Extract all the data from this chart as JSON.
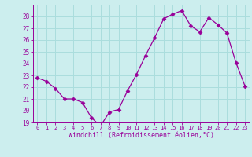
{
  "x": [
    0,
    1,
    2,
    3,
    4,
    5,
    6,
    7,
    8,
    9,
    10,
    11,
    12,
    13,
    14,
    15,
    16,
    17,
    18,
    19,
    20,
    21,
    22,
    23
  ],
  "y": [
    22.8,
    22.5,
    21.9,
    21.0,
    21.0,
    20.7,
    19.4,
    18.7,
    19.9,
    20.1,
    21.7,
    23.1,
    24.7,
    26.2,
    27.8,
    28.2,
    28.5,
    27.2,
    26.7,
    27.9,
    27.3,
    26.6,
    24.1,
    22.1
  ],
  "line_color": "#990099",
  "marker": "D",
  "marker_size": 2.5,
  "bg_color": "#cceeee",
  "grid_color": "#aadddd",
  "tick_color": "#990099",
  "label_color": "#990099",
  "xlabel": "Windchill (Refroidissement éolien,°C)",
  "ylim": [
    19,
    29
  ],
  "xlim": [
    -0.5,
    23.5
  ],
  "yticks": [
    19,
    20,
    21,
    22,
    23,
    24,
    25,
    26,
    27,
    28
  ],
  "xticks": [
    0,
    1,
    2,
    3,
    4,
    5,
    6,
    7,
    8,
    9,
    10,
    11,
    12,
    13,
    14,
    15,
    16,
    17,
    18,
    19,
    20,
    21,
    22,
    23
  ]
}
